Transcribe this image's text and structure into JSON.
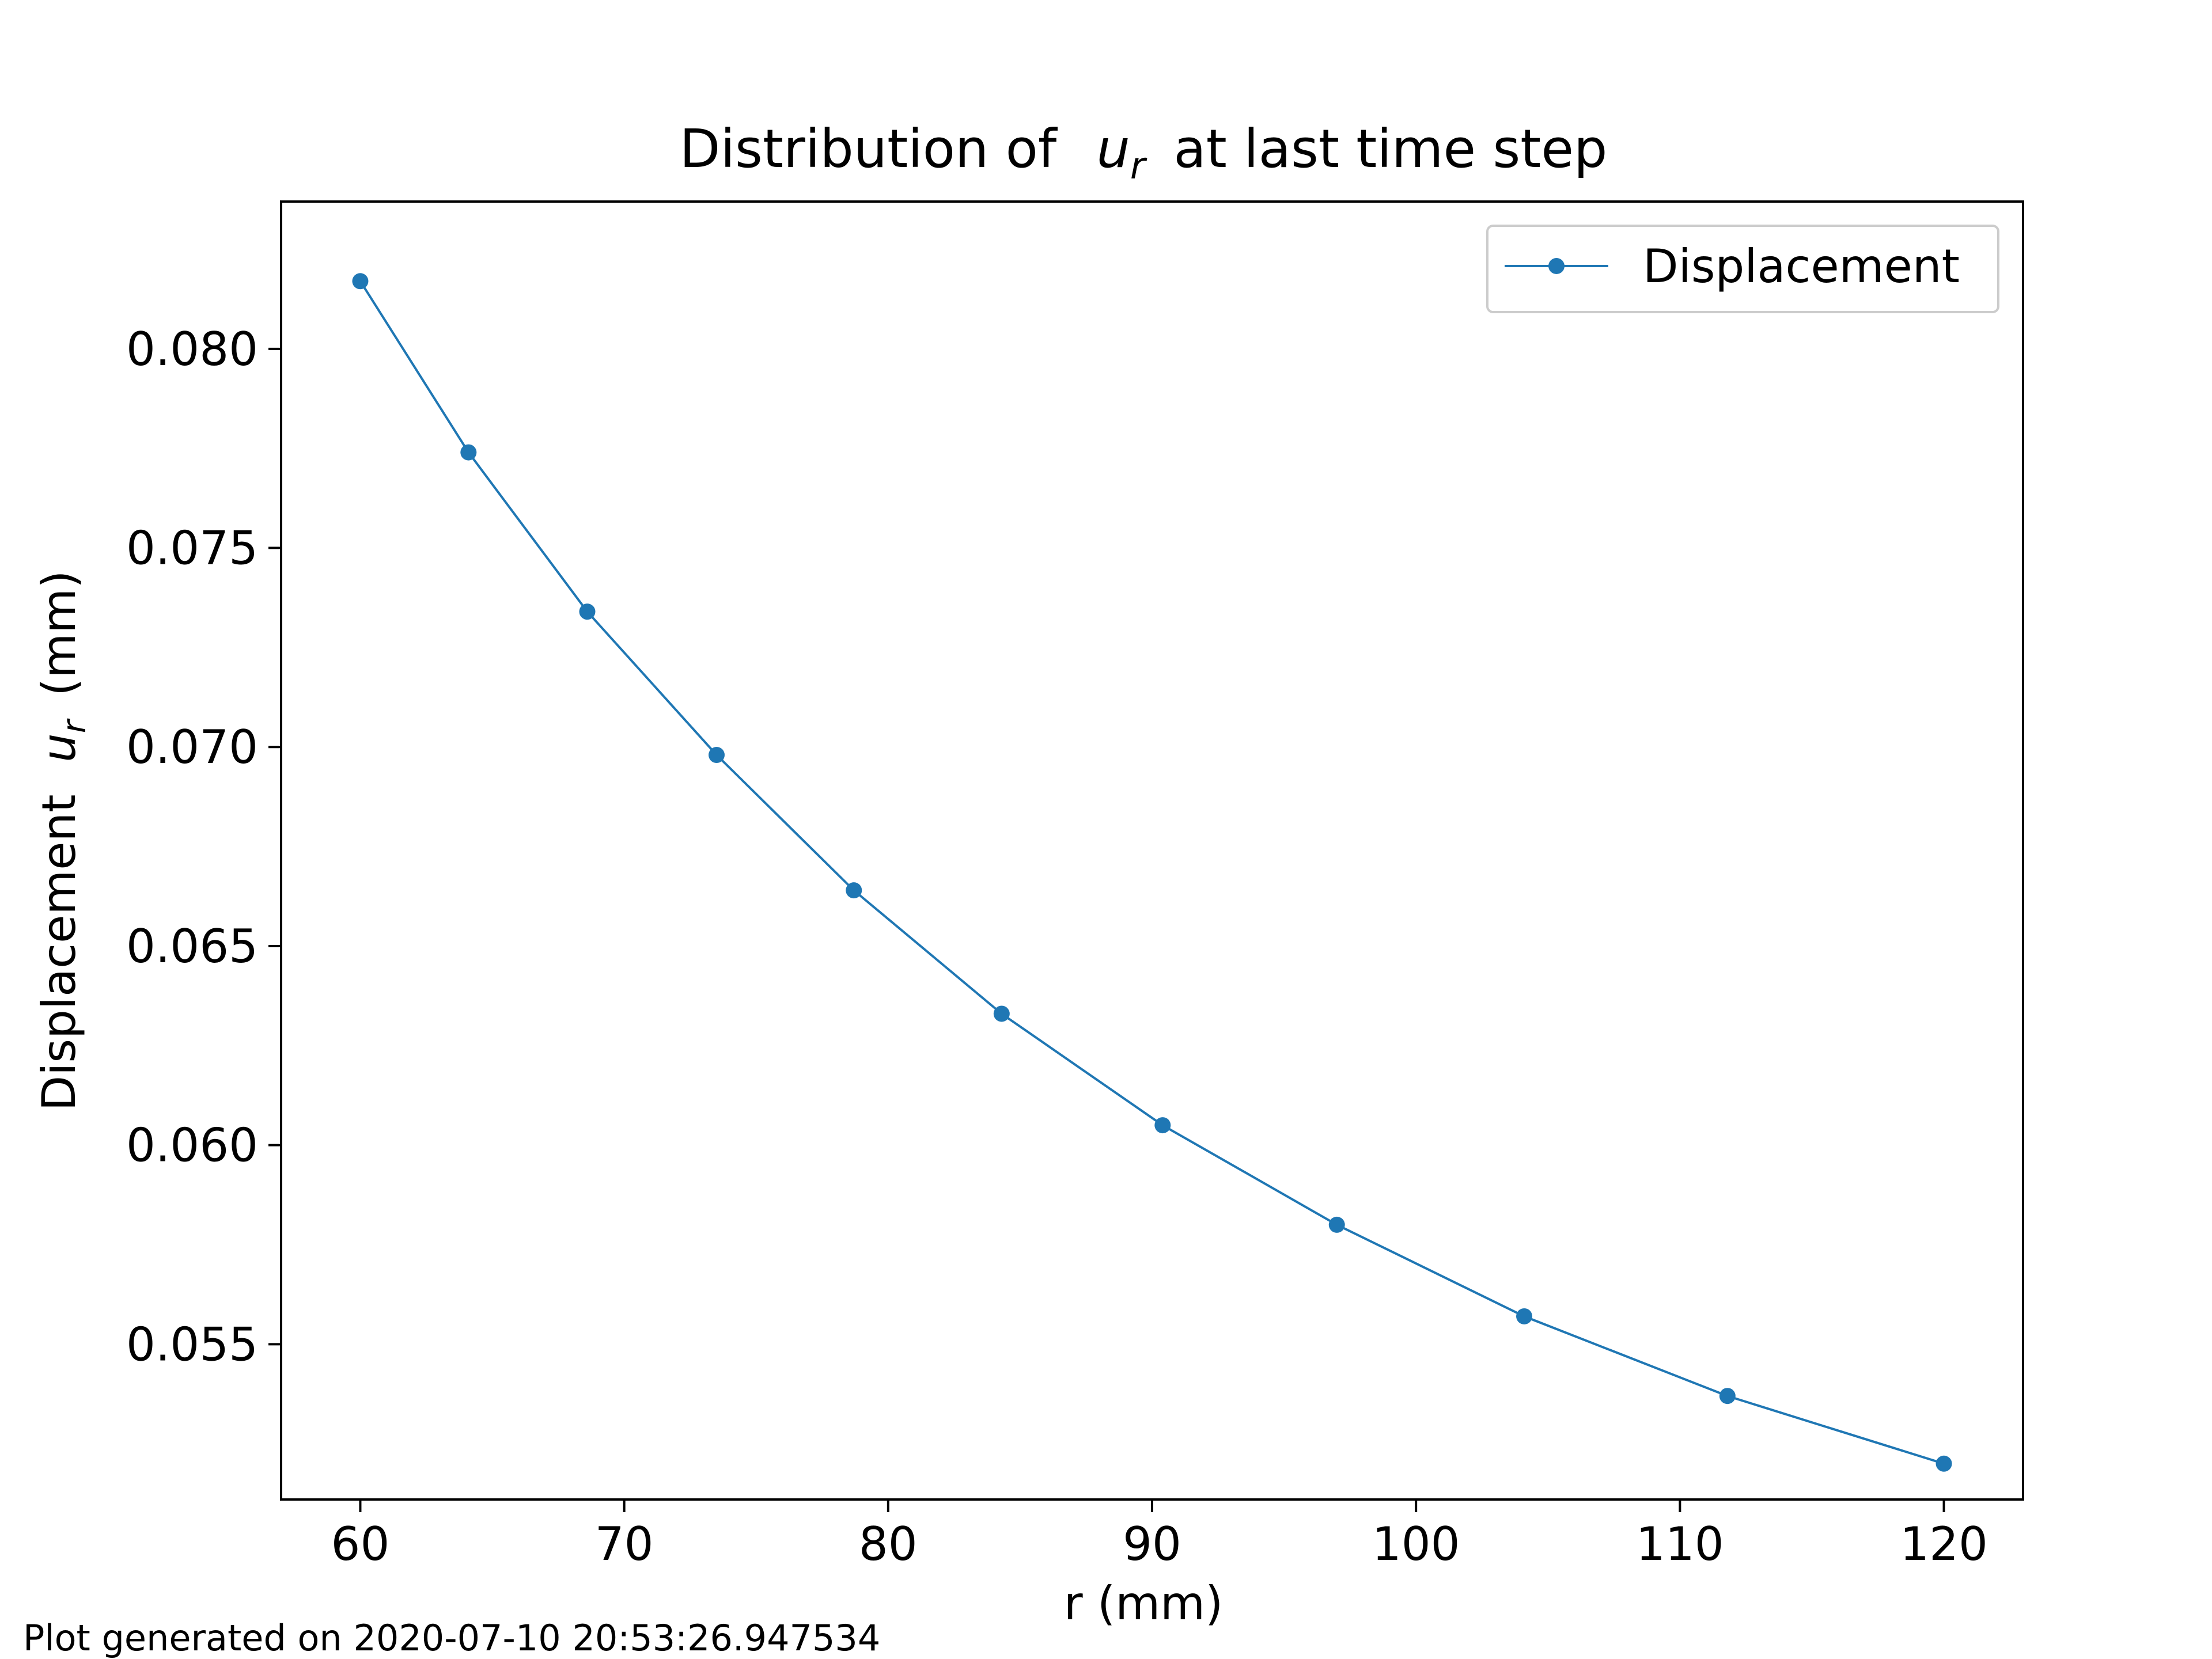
{
  "chart_data": {
    "type": "line",
    "title_prefix": "Distribution of",
    "title_var": "u",
    "title_sub": "r",
    "title_suffix": "at last time step",
    "xlabel": "r (mm)",
    "ylabel_prefix": "Displacement",
    "ylabel_var": "u",
    "ylabel_sub": "r",
    "ylabel_suffix": "(mm)",
    "xlim": [
      57,
      123
    ],
    "ylim": [
      0.0511,
      0.0837
    ],
    "xticks": [
      60,
      70,
      80,
      90,
      100,
      110,
      120
    ],
    "xtick_labels": [
      "60",
      "70",
      "80",
      "90",
      "100",
      "110",
      "120"
    ],
    "yticks": [
      0.055,
      0.06,
      0.065,
      0.07,
      0.075,
      0.08
    ],
    "ytick_labels": [
      "0.055",
      "0.060",
      "0.065",
      "0.070",
      "0.075",
      "0.080"
    ],
    "grid": false,
    "legend_position": "top-right",
    "series": [
      {
        "name": "Displacement",
        "color": "#1f77b4",
        "marker": "circle",
        "x": [
          60.0,
          64.1,
          68.6,
          73.5,
          78.7,
          84.3,
          90.4,
          97.0,
          104.1,
          111.8,
          120.0
        ],
        "y": [
          0.0817,
          0.0774,
          0.0734,
          0.0698,
          0.0664,
          0.0633,
          0.0605,
          0.058,
          0.0557,
          0.0537,
          0.052
        ]
      }
    ]
  },
  "footer_note": "Plot generated on 2020-07-10 20:53:26.947534"
}
